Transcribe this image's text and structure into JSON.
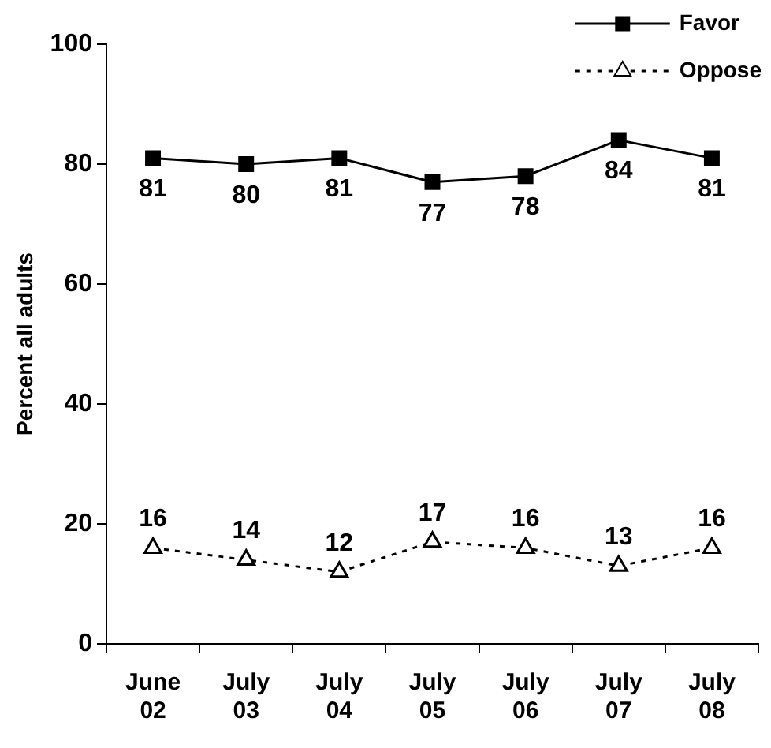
{
  "chart_data": {
    "type": "line",
    "ylabel": "Percent all adults",
    "categories": [
      "June 02",
      "July 03",
      "July 04",
      "July 05",
      "July 06",
      "July 07",
      "July 08"
    ],
    "series": [
      {
        "name": "Favor",
        "color": "#000000",
        "marker": "square",
        "line_style": "solid",
        "values": [
          81,
          80,
          81,
          77,
          78,
          84,
          81
        ]
      },
      {
        "name": "Oppose",
        "color": "#000000",
        "marker": "triangle",
        "line_style": "dotted",
        "values": [
          16,
          14,
          12,
          17,
          16,
          13,
          16
        ]
      }
    ],
    "ylim": [
      0,
      100
    ],
    "yticks": [
      0,
      20,
      40,
      60,
      80,
      100
    ],
    "grid": false,
    "legend": "top right",
    "data_labels": true
  }
}
